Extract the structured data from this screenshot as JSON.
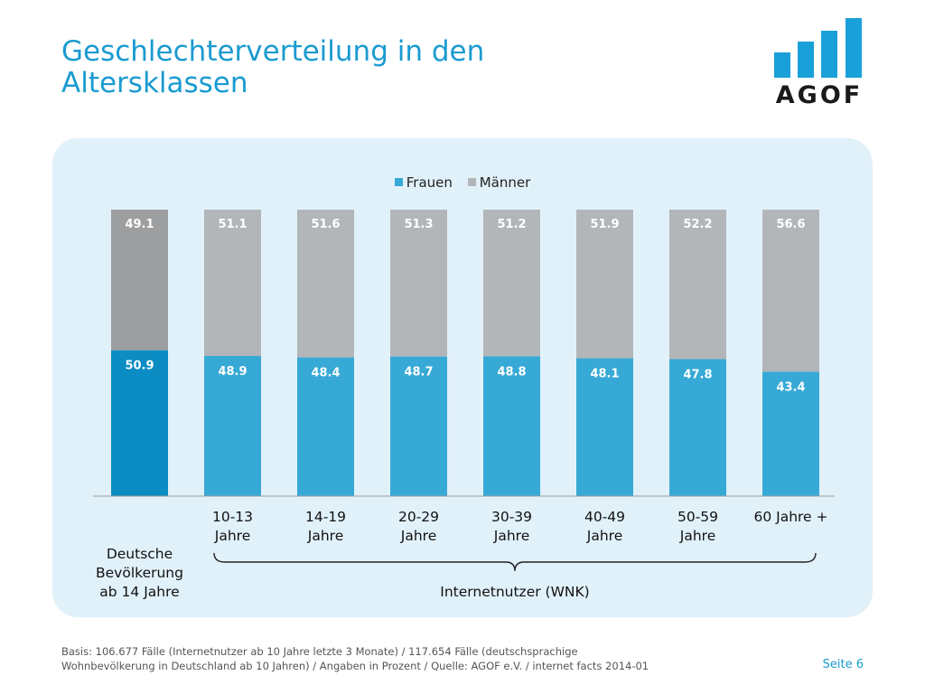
{
  "title": "Geschlechterverteilung in den Altersklassen",
  "logo": {
    "text": "AGOF",
    "color": "#1aa0d8"
  },
  "chart_data": {
    "type": "bar",
    "stacked": true,
    "categories": [
      "Deutsche Bevölkerung ab 14 Jahre",
      "10-13 Jahre",
      "14-19 Jahre",
      "20-29 Jahre",
      "30-39 Jahre",
      "40-49 Jahre",
      "50-59 Jahre",
      "60 Jahre +"
    ],
    "category_lines": [
      [
        "Deutsche",
        "Bevölkerung",
        "ab 14 Jahre"
      ],
      [
        "10-13",
        "Jahre"
      ],
      [
        "14-19",
        "Jahre"
      ],
      [
        "20-29",
        "Jahre"
      ],
      [
        "30-39",
        "Jahre"
      ],
      [
        "40-49",
        "Jahre"
      ],
      [
        "50-59",
        "Jahre"
      ],
      [
        "60 Jahre +"
      ]
    ],
    "series": [
      {
        "name": "Frauen",
        "color": "#37a9d6",
        "highlight_color": "#0b8cc2",
        "values": [
          50.9,
          48.9,
          48.4,
          48.7,
          48.8,
          48.1,
          47.8,
          43.4
        ]
      },
      {
        "name": "Männer",
        "color": "#b3b6b9",
        "highlight_color": "#9d9e9f",
        "values": [
          49.1,
          51.1,
          51.6,
          51.3,
          51.2,
          51.9,
          52.2,
          56.6
        ]
      }
    ],
    "highlight_index": 0,
    "ylim": [
      0,
      100
    ],
    "grid": false,
    "legend_position": "top-center",
    "group_label": "Internetnutzer (WNK)"
  },
  "footer": {
    "note_lines": [
      "Basis: 106.677 Fälle (Internetnutzer ab 10 Jahre letzte 3 Monate) / 117.654 Fälle (deutschsprachige",
      "Wohnbevölkerung in Deutschland ab 10 Jahren) / Angaben in Prozent / Quelle: AGOF e.V. / internet facts 2014-01"
    ],
    "page": "Seite 6"
  }
}
